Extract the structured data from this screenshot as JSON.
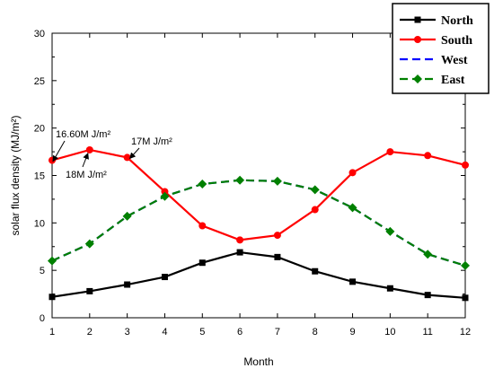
{
  "chart_data": {
    "type": "line",
    "xlabel": "Month",
    "ylabel": "solar flux density  (MJ/m²)",
    "x": [
      1,
      2,
      3,
      4,
      5,
      6,
      7,
      8,
      9,
      10,
      11,
      12
    ],
    "xlim": [
      1,
      12
    ],
    "ylim": [
      0,
      30
    ],
    "xticks": [
      "1",
      "2",
      "3",
      "4",
      "5",
      "6",
      "7",
      "8",
      "9",
      "10",
      "11",
      "12"
    ],
    "yticks": [
      "0",
      "5",
      "10",
      "15",
      "20",
      "25",
      "30"
    ],
    "grid": false,
    "legend_position": "top-right",
    "series": [
      {
        "name": "North",
        "color": "#000000",
        "marker": "square",
        "dash": "solid",
        "values": [
          2.2,
          2.8,
          3.5,
          4.3,
          5.8,
          6.9,
          6.4,
          4.9,
          3.8,
          3.1,
          2.4,
          2.1
        ]
      },
      {
        "name": "South",
        "color": "#ff0000",
        "marker": "circle",
        "dash": "solid",
        "values": [
          16.6,
          17.7,
          16.9,
          13.3,
          9.7,
          8.2,
          8.7,
          11.4,
          15.3,
          17.5,
          17.1,
          16.1
        ]
      },
      {
        "name": "West",
        "color": "#0000ff",
        "marker": "none",
        "dash": "dashed",
        "values": [
          6.0,
          7.8,
          10.7,
          12.8,
          14.1,
          14.5,
          14.4,
          13.5,
          11.6,
          9.1,
          6.7,
          5.5
        ]
      },
      {
        "name": "East",
        "color": "#008000",
        "marker": "diamond",
        "dash": "dashed",
        "values": [
          6.0,
          7.8,
          10.7,
          12.8,
          14.1,
          14.5,
          14.4,
          13.5,
          11.6,
          9.1,
          6.7,
          5.5
        ]
      }
    ],
    "annotations": [
      {
        "text": "16.60M J/m²",
        "target_x": 1,
        "target_y": 16.6
      },
      {
        "text": "18M J/m²",
        "target_x": 2,
        "target_y": 17.7
      },
      {
        "text": "17M J/m²",
        "target_x": 3,
        "target_y": 16.9
      }
    ]
  }
}
